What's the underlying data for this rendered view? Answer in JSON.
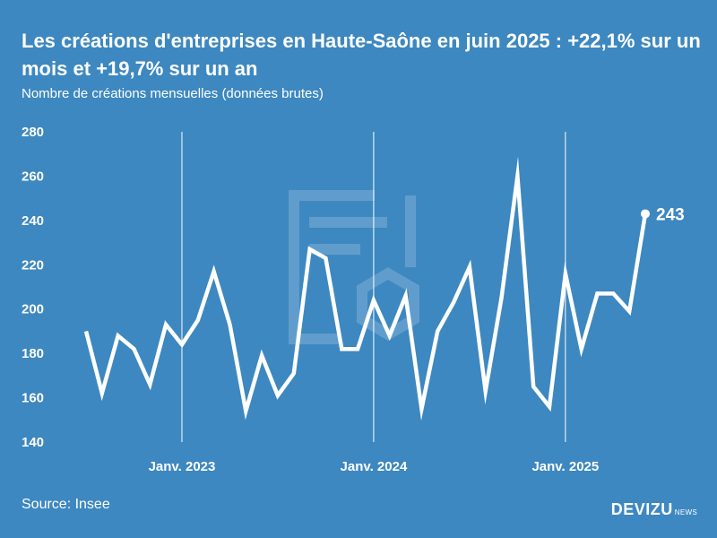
{
  "header": {
    "title": "Les créations d'entreprises en Haute-Saône en juin 2025 : +22,1% sur un mois et +19,7% sur un an",
    "subtitle": "Nombre de créations mensuelles (données brutes)"
  },
  "footer": {
    "source": "Source: Insee",
    "brand": "DEVIZU",
    "brand_sub": "NEWS"
  },
  "colors": {
    "background": "#3d88c0",
    "line": "#ffffff",
    "watermark": "#6aa3d0"
  },
  "chart_data": {
    "type": "line",
    "title": "Les créations d'entreprises en Haute-Saône en juin 2025 : +22,1% sur un mois et +19,7% sur un an",
    "subtitle": "Nombre de créations mensuelles (données brutes)",
    "xlabel": "",
    "ylabel": "",
    "ylim": [
      140,
      280
    ],
    "yticks": [
      140,
      160,
      180,
      200,
      220,
      240,
      260,
      280
    ],
    "x_start": "2022-07",
    "x_end": "2025-06",
    "xticks": [
      {
        "label": "Janv. 2023",
        "index": 6
      },
      {
        "label": "Janv. 2024",
        "index": 18
      },
      {
        "label": "Janv. 2025",
        "index": 30
      }
    ],
    "grid": "vertical lines at January of each year",
    "series": [
      {
        "values": [
          190,
          162,
          188,
          182,
          166,
          193,
          184,
          195,
          217,
          193,
          154,
          179,
          161,
          171,
          227,
          223,
          182,
          182,
          204,
          188,
          206,
          155,
          190,
          203,
          219,
          163,
          205,
          260,
          165,
          156,
          216,
          182,
          207,
          207,
          199,
          243
        ]
      }
    ],
    "last_value_label": "243"
  }
}
